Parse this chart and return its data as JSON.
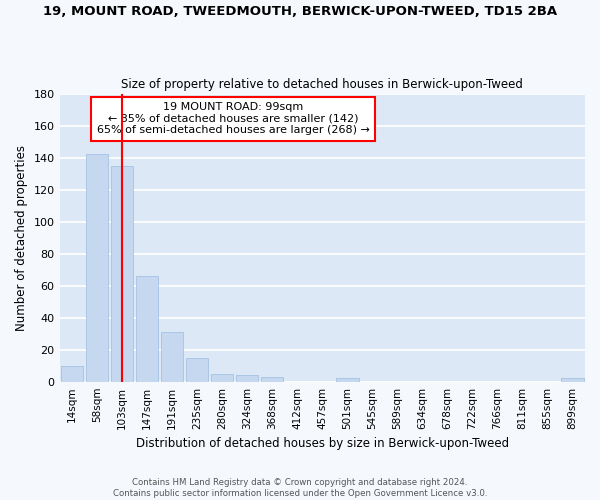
{
  "title": "19, MOUNT ROAD, TWEEDMOUTH, BERWICK-UPON-TWEED, TD15 2BA",
  "subtitle": "Size of property relative to detached houses in Berwick-upon-Tweed",
  "xlabel": "Distribution of detached houses by size in Berwick-upon-Tweed",
  "ylabel": "Number of detached properties",
  "bar_color": "#c5d8f0",
  "bar_edge_color": "#9bbde0",
  "plot_bg_color": "#dce8f5",
  "fig_bg_color": "#f5f8fd",
  "grid_color": "#ffffff",
  "categories": [
    "14sqm",
    "58sqm",
    "103sqm",
    "147sqm",
    "191sqm",
    "235sqm",
    "280sqm",
    "324sqm",
    "368sqm",
    "412sqm",
    "457sqm",
    "501sqm",
    "545sqm",
    "589sqm",
    "634sqm",
    "678sqm",
    "722sqm",
    "766sqm",
    "811sqm",
    "855sqm",
    "899sqm"
  ],
  "values": [
    10,
    142,
    135,
    66,
    31,
    15,
    5,
    4,
    3,
    0,
    0,
    2,
    0,
    0,
    0,
    0,
    0,
    0,
    0,
    0,
    2
  ],
  "ylim": [
    0,
    180
  ],
  "yticks": [
    0,
    20,
    40,
    60,
    80,
    100,
    120,
    140,
    160,
    180
  ],
  "property_label": "19 MOUNT ROAD: 99sqm",
  "annotation_line1": "← 35% of detached houses are smaller (142)",
  "annotation_line2": "65% of semi-detached houses are larger (268) →",
  "red_line_x": 2.0,
  "footer_line1": "Contains HM Land Registry data © Crown copyright and database right 2024.",
  "footer_line2": "Contains public sector information licensed under the Open Government Licence v3.0."
}
